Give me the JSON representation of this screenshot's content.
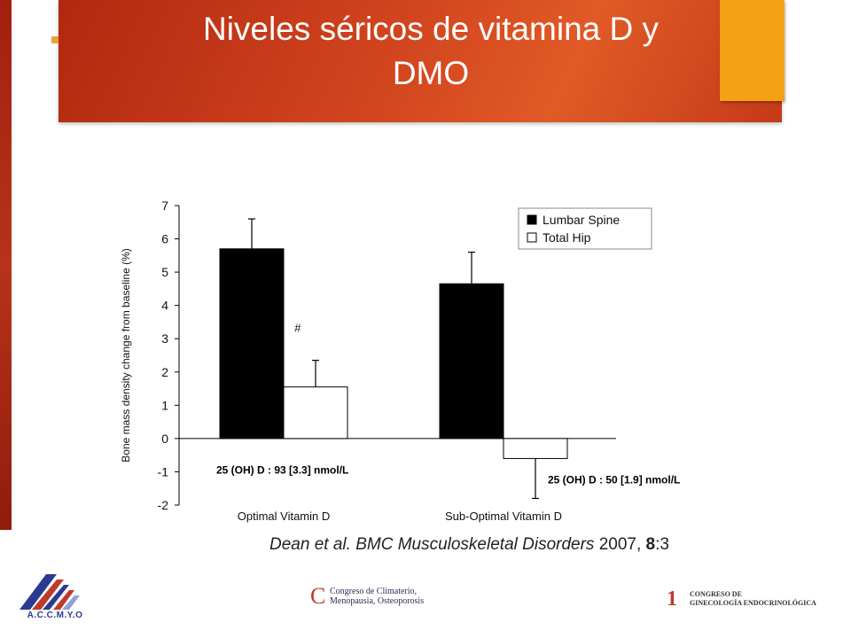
{
  "slide": {
    "title": "Niveles séricos de vitamina D y\nDMO",
    "citation": {
      "authors": "Dean et al.",
      "journal": "BMC Musculoskeletal Disorders",
      "year": "2007,",
      "volume": "8",
      "issue": ":3"
    },
    "logos": {
      "left_text": "A.C.C.M.Y.O",
      "center_mark": "C",
      "center_text": "Congreso de Climaterio,\nMenopausia, Osteoporosis",
      "right_mark": "1",
      "right_text": "CONGRESO DE\nGINECOLOGÍA ENDOCRINOLÓGICA"
    },
    "colors": {
      "banner": "#d1441e",
      "accent": "#f5a114",
      "bullet": "#e9a13a"
    }
  },
  "chart_data": {
    "type": "bar",
    "ylabel": "Bone mass density change from baseline (%)",
    "ylim": [
      -2,
      7
    ],
    "yticks": [
      "7",
      "6",
      "5",
      "4",
      "3",
      "2",
      "1",
      "0",
      "-1",
      "-2"
    ],
    "categories": [
      "Optimal Vitamin D",
      "Sub-Optimal Vitamin D"
    ],
    "series": [
      {
        "name": "Lumbar Spine",
        "values": [
          5.7,
          4.65
        ],
        "errors": [
          0.9,
          0.95
        ],
        "fill": "#000000"
      },
      {
        "name": "Total Hip",
        "values": [
          1.55,
          -0.6
        ],
        "errors": [
          0.8,
          1.2
        ],
        "fill": "#ffffff"
      }
    ],
    "annotations": [
      {
        "text": "#",
        "category": 0,
        "series": 1
      },
      {
        "text": "25 (OH) D : 93 [3.3] nmol/L",
        "category": 0
      },
      {
        "text": "25 (OH) D : 50 [1.9] nmol/L",
        "category": 1
      }
    ],
    "legend": "top-right",
    "grid": false
  }
}
